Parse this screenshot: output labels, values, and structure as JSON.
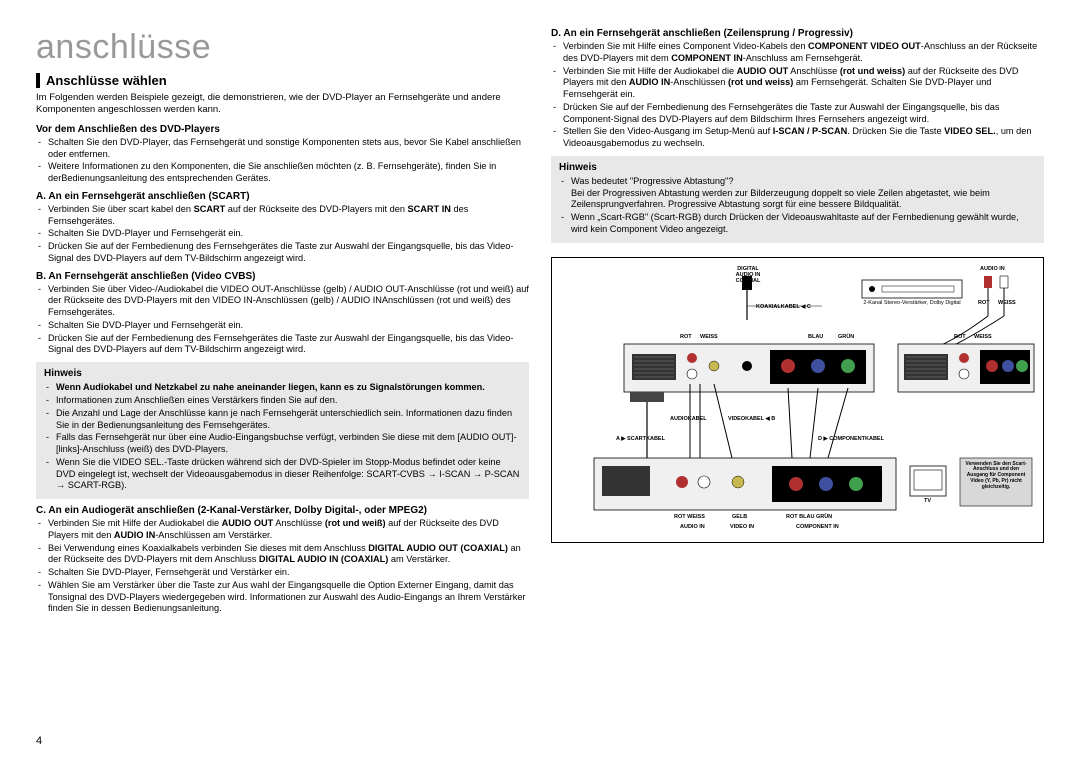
{
  "page": {
    "title": "anschlüsse",
    "number": "4"
  },
  "left": {
    "heading": "Anschlüsse wählen",
    "intro": "Im Folgenden werden Beispiele gezeigt, die demonstrieren, wie der DVD-Player an Fernsehgeräte und andere Komponenten angeschlossen werden kann.",
    "sub1": "Vor dem Anschließen des DVD-Players",
    "sub1_items": [
      "Schalten Sie den DVD-Player, das Fernsehgerät und sonstige Komponenten stets aus, bevor Sie Kabel anschließen oder entfernen.",
      "Weitere Informationen zu den Komponenten, die Sie anschließen möchten (z. B. Fernsehgeräte), finden Sie in derBedienungsanleitung des entsprechenden Gerätes."
    ],
    "subA": "A. An ein Fernsehgerät anschließen (SCART)",
    "subA_items": [
      "Verbinden Sie über scart kabel den <b>SCART</b> auf der Rückseite des DVD-Players mit den <b>SCART IN</b> des Fernsehgerätes.",
      "Schalten Sie DVD-Player und Fernsehgerät ein.",
      "Drücken Sie auf der Fernbedienung des Fernsehgerätes die Taste zur Auswahl der Eingangsquelle, bis das Video-Signal des DVD-Players auf dem TV-Bildschirm angezeigt wird."
    ],
    "subB": "B.  An Fernsehgerät anschließen (Video CVBS)",
    "subB_items": [
      "Verbinden Sie über Video-/Audiokabel die VIDEO OUT-Anschlüsse (gelb) / AUDIO OUT-Anschlüsse (rot und weiß) auf der Rückseite des DVD-Players mit den VIDEO IN-Anschlüssen (gelb) / AUDIO INAnschlüssen (rot und weiß) des Fernsehgerätes.",
      "Schalten Sie DVD-Player und Fernsehgerät ein.",
      "Drücken Sie auf der Fernbedienung des Fernsehgerätes die Taste zur Auswahl der Eingangsquelle, bis das Video-Signal des DVD-Players auf dem TV-Bildschirm angezeigt wird."
    ],
    "note1_title": "Hinweis",
    "note1_items": [
      "<b>Wenn Audiokabel und Netzkabel zu nahe aneinander liegen, kann es zu Signalstörungen kommen.</b>",
      "Informationen zum Anschließen eines Verstärkers finden Sie auf den.",
      "Die Anzahl und Lage der Anschlüsse kann je nach Fernsehgerät unterschiedlich sein. Informationen dazu finden Sie in der Bedienungsanleitung des Fernsehgerätes.",
      "Falls das Fernsehgerät nur über eine Audio-Eingangsbuchse verfügt, verbinden Sie diese mit dem [AUDIO OUT]- [links]-Anschluss (weiß) des DVD-Players.",
      "Wenn Sie die VIDEO SEL.-Taste drücken während sich der DVD-Spieler im Stopp-Modus befindet oder keine DVD eingelegt ist, wechselt der Videoausgabemodus in dieser Reihenfolge: SCART-CVBS → I-SCAN → P-SCAN → SCART-RGB)."
    ],
    "subC": "C. An ein Audiogerät anschließen (2-Kanal-Verstärker, Dolby Digital-, oder MPEG2)",
    "subC_items": [
      "Verbinden Sie mit Hilfe der Audiokabel die <b>AUDIO OUT</b> Anschlüsse <b>(rot und weiß)</b> auf der Rückseite des DVD Players mit den <b>AUDIO IN</b>-Anschlüssen am Verstärker.",
      "Bei Verwendung eines Koaxialkabels verbinden Sie dieses mit dem Anschluss <b>DIGITAL AUDIO OUT (COAXIAL)</b> an der Rückseite des DVD-Players mit dem Anschluss <b>DIGITAL AUDIO IN (COAXIAL)</b> am Verstärker.",
      "Schalten Sie DVD-Player, Fernsehgerät und Verstärker ein.",
      "Wählen Sie am Verstärker über die Taste zur Aus wahl der Eingangsquelle die Option Externer Eingang, damit das Tonsignal des DVD-Players wiedergegeben wird. Informationen zur Auswahl des Audio-Eingangs an Ihrem Verstärker finden Sie in dessen Bedienungsanleitung."
    ]
  },
  "right": {
    "subD": "D. An ein Fernsehgerät anschließen (Zeilensprung / Progressiv)",
    "subD_items": [
      "Verbinden Sie mit Hilfe eines Component Video-Kabels den <b>COMPONENT VIDEO OUT</b>-Anschluss an der Rückseite des DVD-Players mit dem <b>COMPONENT IN</b>-Anschluss am Fernsehgerät.",
      "Verbinden Sie mit Hilfe der Audiokabel die <b>AUDIO OUT</b> Anschlüsse <b>(rot und weiss)</b> auf der Rückseite des DVD Players mit den <b>AUDIO IN</b>-Anschlüssen <b>(rot und weiss)</b> am Fernsehgerät. Schalten Sie DVD-Player und Fernsehgerät ein.",
      "Drücken Sie auf der Fernbedienung des Fernsehgerätes die Taste zur Auswahl der Eingangsquelle, bis das Component-Signal des DVD-Players auf dem Bildschirm Ihres Fernsehers angezeigt wird.",
      "Stellen Sie den Video-Ausgang im Setup-Menü auf <b>I-SCAN / P-SCAN</b>. Drücken Sie die Taste <b>VIDEO SEL.</b>, um den Videoausgabemodus zu wechseln."
    ],
    "note2_title": "Hinweis",
    "note2_items": [
      "Was bedeutet \"Progressive Abtastung\"?<br>Bei der Progressiven Abtastung werden zur Bilderzeugung doppelt so viele Zeilen abgetastet, wie beim Zeilensprungverfahren. Progressive Abtastung sorgt für eine bessere Bildqualität.",
      "Wenn „Scart-RGB\" (Scart-RGB) durch Drücken der Videoauswahltaste auf der Fernbedienung gewählt wurde, wird kein Component Video angezeigt."
    ]
  },
  "diagram": {
    "labels": {
      "digital_audio": "DIGITAL AUDIO IN COAXIAL",
      "audio_in": "AUDIO IN",
      "koaxial": "KOAXIALKABEL ◀ C",
      "amp": "2-Kanal Stereo-Verstärker, Dolby Digital",
      "rot1": "ROT",
      "weiss1": "WEISS",
      "rot2": "ROT",
      "weiss2": "WEISS",
      "rot3": "ROT",
      "weiss3": "WEISS",
      "blau": "BLAU",
      "grun": "GRÜN",
      "audiokabel": "AUDIOKABEL",
      "videokabel": "VIDEOKABEL ◀ B",
      "scartkabel": "A ▶ SCARTKABEL",
      "componentkabel": "D ▶ COMPONENTKABEL",
      "audio_in2": "AUDIO IN",
      "video_in": "VIDEO IN",
      "component_in": "COMPONENT IN",
      "rotweiss": "ROT  WEISS",
      "gelb": "GELB",
      "rbg": "ROT  BLAU  GRÜN",
      "tv": "TV",
      "warning": "Verwenden Sie den Scart-Anschluss und den Ausgang für Component Video (Y, Pb, Pr) nicht gleichzeitig."
    },
    "colors": {
      "red": "#b03030",
      "white": "#ffffff",
      "yellow": "#c8b850",
      "blue": "#4050a0",
      "green": "#40a050",
      "black": "#000000",
      "gray": "#888888"
    }
  }
}
